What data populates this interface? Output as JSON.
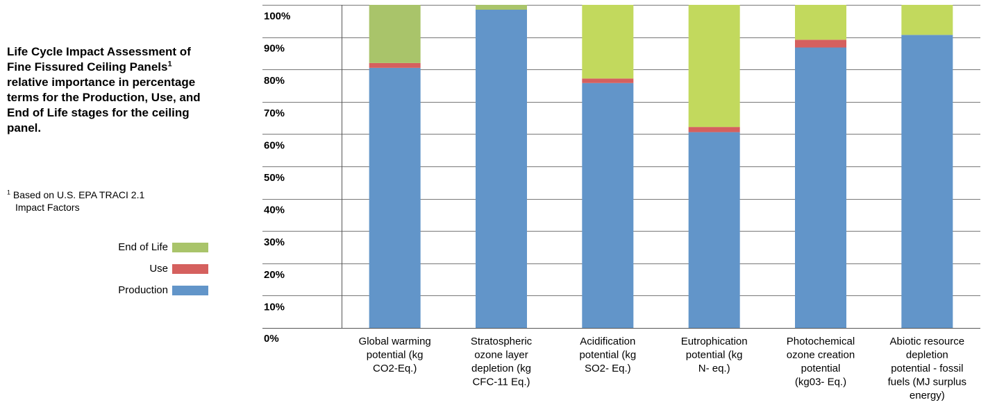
{
  "title": {
    "text": "Life Cycle Impact Assessment of Fine Fissured Ceiling Panels",
    "superscript": "1",
    "text_after": " relative importance in percentage terms for the Production, Use, and End of Life stages for the ceiling panel."
  },
  "footnote": {
    "marker": "1",
    "line1": "Based on U.S. EPA TRACI 2.1",
    "line2": "Impact Factors"
  },
  "legend": [
    {
      "label": "End of Life",
      "color": "#a9c46a"
    },
    {
      "label": "Use",
      "color": "#d5605e"
    },
    {
      "label": "Production",
      "color": "#6295c9"
    }
  ],
  "chart_data": {
    "type": "bar",
    "stacked": true,
    "categories": [
      [
        "Global warming",
        "potential (kg",
        "CO2-Eq.)"
      ],
      [
        "Stratospheric",
        "ozone layer",
        "depletion (kg",
        "CFC-11 Eq.)"
      ],
      [
        "Acidification",
        "potential (kg",
        "SO2- Eq.)"
      ],
      [
        "Eutrophication",
        "potential (kg",
        "N- eq.)"
      ],
      [
        "Photochemical",
        "ozone creation",
        "potential",
        "(kg03- Eq.)"
      ],
      [
        "Abiotic resource",
        "depletion",
        "potential - fossil",
        "fuels (MJ surplus",
        "energy)"
      ]
    ],
    "series": [
      {
        "name": "Production",
        "color": "#6295c9",
        "values": [
          80.5,
          98.5,
          75.8,
          60.6,
          86.8,
          90.7
        ]
      },
      {
        "name": "Use",
        "color": "#d5605e",
        "values": [
          1.5,
          0,
          1.4,
          1.6,
          2.4,
          0
        ]
      },
      {
        "name": "End of Life",
        "color": "#a9c46a",
        "values": [
          18.0,
          1.5,
          22.8,
          37.8,
          10.8,
          9.3
        ]
      }
    ],
    "end_of_life_colors": [
      "#a9c46a",
      "#a9c46a",
      "#c2d95d",
      "#c2d95d",
      "#c2d95d",
      "#c2d95d"
    ],
    "yticks": [
      "0%",
      "10%",
      "20%",
      "30%",
      "40%",
      "50%",
      "60%",
      "70%",
      "80%",
      "90%",
      "100%"
    ],
    "ylim": [
      0,
      100
    ],
    "grid": true,
    "legend_position": "left"
  }
}
